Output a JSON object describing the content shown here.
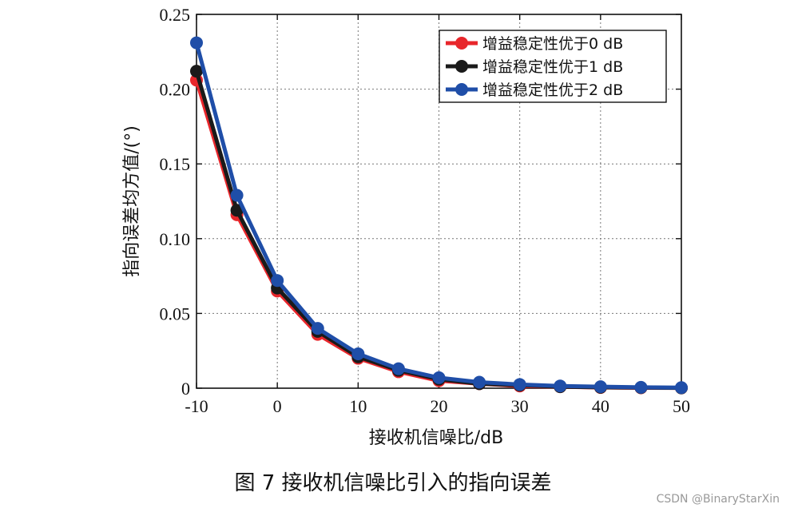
{
  "chart_data": {
    "type": "line",
    "title": "",
    "xlabel": "接收机信噪比/dB",
    "ylabel": "指向误差均方值/(°)",
    "xlim": [
      -10,
      50
    ],
    "ylim": [
      0,
      0.25
    ],
    "x_ticks": [
      -10,
      0,
      10,
      20,
      30,
      40,
      50
    ],
    "y_ticks": [
      0,
      0.05,
      0.1,
      0.15,
      0.2,
      0.25
    ],
    "y_tick_labels": [
      "0",
      "0.05",
      "0.10",
      "0.15",
      "0.20",
      "0.25"
    ],
    "grid": true,
    "legend_position": "top-right",
    "x": [
      -10,
      -5,
      0,
      5,
      10,
      15,
      20,
      25,
      30,
      35,
      40,
      45,
      50
    ],
    "series": [
      {
        "name": "增益稳定性优于0 dB",
        "color": "#e8262b",
        "values": [
          0.206,
          0.116,
          0.065,
          0.036,
          0.02,
          0.011,
          0.005,
          0.003,
          0.0015,
          0.001,
          0.0005,
          0.0003,
          0.0002
        ]
      },
      {
        "name": "增益稳定性优于1 dB",
        "color": "#1a1a1a",
        "values": [
          0.212,
          0.119,
          0.067,
          0.038,
          0.021,
          0.012,
          0.006,
          0.003,
          0.002,
          0.001,
          0.0006,
          0.0004,
          0.0002
        ]
      },
      {
        "name": "增益稳定性优于2 dB",
        "color": "#1f4ea8",
        "values": [
          0.231,
          0.129,
          0.072,
          0.04,
          0.023,
          0.013,
          0.007,
          0.004,
          0.0025,
          0.0015,
          0.001,
          0.0006,
          0.0004
        ]
      }
    ]
  },
  "caption": "图 7    接收机信噪比引入的指向误差",
  "watermark": "CSDN @BinaryStarXin"
}
